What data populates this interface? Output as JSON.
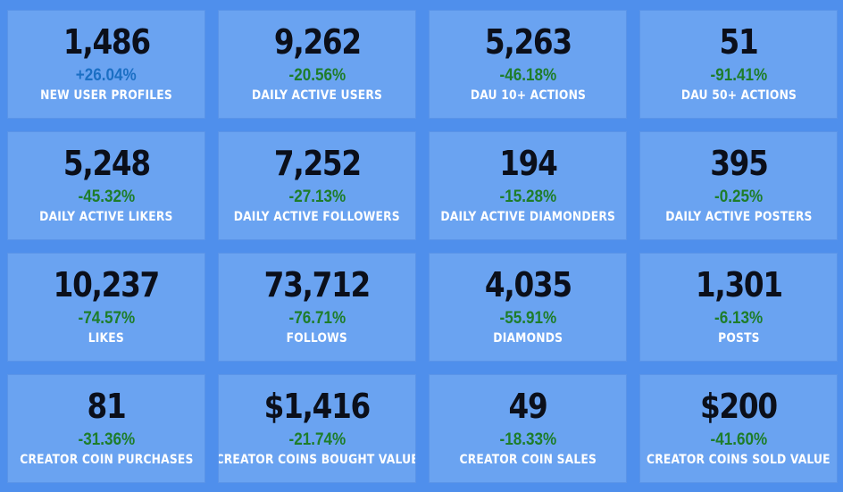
{
  "metrics": [
    {
      "value": "1,486",
      "change": "+26.04%",
      "label": "NEW USER PROFILES"
    },
    {
      "value": "9,262",
      "change": "-20.56%",
      "label": "DAILY ACTIVE USERS"
    },
    {
      "value": "5,263",
      "change": "-46.18%",
      "label": "DAU 10+ ACTIONS"
    },
    {
      "value": "51",
      "change": "-91.41%",
      "label": "DAU 50+ ACTIONS"
    },
    {
      "value": "5,248",
      "change": "-45.32%",
      "label": "DAILY ACTIVE LIKERS"
    },
    {
      "value": "7,252",
      "change": "-27.13%",
      "label": "DAILY ACTIVE FOLLOWERS"
    },
    {
      "value": "194",
      "change": "-15.28%",
      "label": "DAILY ACTIVE DIAMONDERS"
    },
    {
      "value": "395",
      "change": "-0.25%",
      "label": "DAILY ACTIVE POSTERS"
    },
    {
      "value": "10,237",
      "change": "-74.57%",
      "label": "LIKES"
    },
    {
      "value": "73,712",
      "change": "-76.71%",
      "label": "FOLLOWS"
    },
    {
      "value": "4,035",
      "change": "-55.91%",
      "label": "DIAMONDS"
    },
    {
      "value": "1,301",
      "change": "-6.13%",
      "label": "POSTS"
    },
    {
      "value": "81",
      "change": "-31.36%",
      "label": "CREATOR COIN PURCHASES"
    },
    {
      "value": "$1,416",
      "change": "-21.74%",
      "label": "CREATOR COINS BOUGHT VALUE"
    },
    {
      "value": "49",
      "change": "-18.33%",
      "label": "CREATOR COIN SALES"
    },
    {
      "value": "$200",
      "change": "-41.60%",
      "label": "CREATOR COINS SOLD VALUE"
    }
  ],
  "colors": {
    "background": "#4f8fec",
    "tile": "#6aa3f1",
    "value": "#0b0f1a",
    "positive_change": "#1b6fc4",
    "negative_change": "#1e7d2a",
    "label": "#ffffff"
  }
}
